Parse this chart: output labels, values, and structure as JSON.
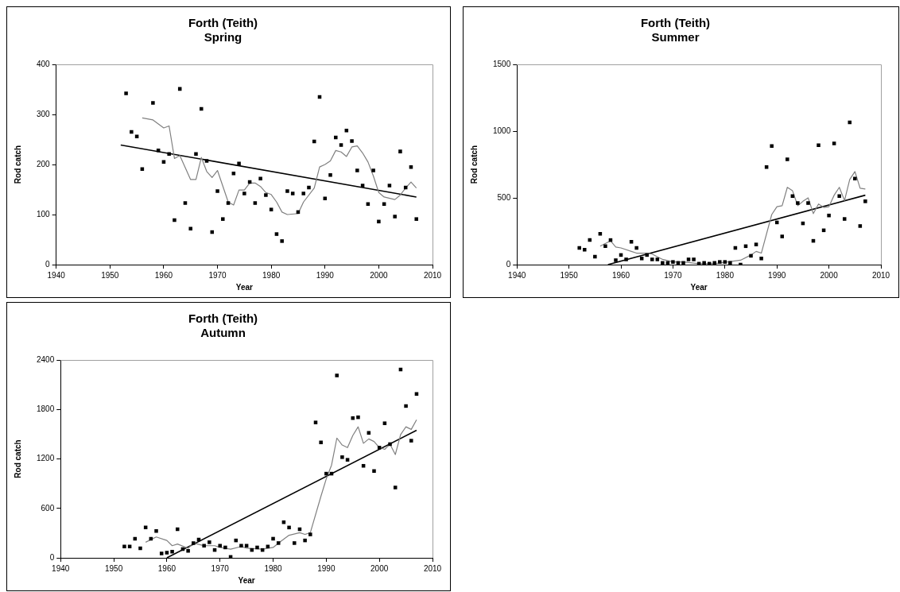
{
  "chart_data": [
    {
      "type": "scatter",
      "title": "Forth (Teith)",
      "subtitle": "Spring",
      "xlabel": "Year",
      "ylabel": "Rod catch",
      "xlim": [
        1940,
        2010
      ],
      "xticks": [
        1940,
        1950,
        1960,
        1970,
        1980,
        1990,
        2000,
        2010
      ],
      "ylim": [
        0,
        400
      ],
      "yticks": [
        0,
        100,
        200,
        300,
        400
      ],
      "grid": false,
      "legend": false,
      "series": [
        {
          "type": "scatter",
          "marker": "square",
          "color": "#000000",
          "x": [
            1953,
            1954,
            1955,
            1956,
            1958,
            1959,
            1960,
            1961,
            1962,
            1963,
            1964,
            1965,
            1966,
            1967,
            1968,
            1969,
            1970,
            1971,
            1972,
            1973,
            1974,
            1975,
            1976,
            1977,
            1978,
            1979,
            1980,
            1981,
            1982,
            1983,
            1984,
            1985,
            1986,
            1987,
            1988,
            1989,
            1990,
            1991,
            1992,
            1993,
            1994,
            1995,
            1996,
            1997,
            1998,
            1999,
            2000,
            2001,
            2002,
            2003,
            2004,
            2005,
            2006,
            2007
          ],
          "values": [
            342,
            265,
            256,
            191,
            323,
            228,
            205,
            221,
            89,
            351,
            123,
            72,
            221,
            311,
            207,
            65,
            147,
            91,
            123,
            182,
            202,
            142,
            165,
            123,
            172,
            139,
            110,
            61,
            47,
            147,
            142,
            105,
            142,
            154,
            246,
            335,
            132,
            179,
            254,
            239,
            268,
            247,
            188,
            158,
            121,
            188,
            86,
            121,
            158,
            96,
            226,
            154,
            195,
            91
          ]
        },
        {
          "type": "line",
          "marker": "none",
          "color": "#808080",
          "x": [
            1956,
            1958,
            1960,
            1961,
            1962,
            1963,
            1965,
            1966,
            1967,
            1968,
            1969,
            1970,
            1972,
            1973,
            1974,
            1975,
            1976,
            1977,
            1978,
            1979,
            1980,
            1981,
            1982,
            1983,
            1985,
            1986,
            1988,
            1989,
            1990,
            1991,
            1992,
            1993,
            1994,
            1995,
            1996,
            1997,
            1998,
            1999,
            2000,
            2001,
            2003,
            2004,
            2005,
            2006,
            2007
          ],
          "values": [
            293,
            289,
            273,
            277,
            212,
            218,
            170,
            170,
            214,
            186,
            174,
            188,
            125,
            119,
            149,
            149,
            163,
            163,
            156,
            144,
            140,
            125,
            105,
            100,
            102,
            125,
            153,
            195,
            200,
            207,
            228,
            225,
            216,
            235,
            237,
            223,
            205,
            177,
            144,
            135,
            130,
            139,
            153,
            165,
            153
          ]
        },
        {
          "type": "line",
          "marker": "none",
          "color": "#000000",
          "x": [
            1952,
            2007
          ],
          "values": [
            239,
            135
          ]
        }
      ]
    },
    {
      "type": "scatter",
      "title": "Forth (Teith)",
      "subtitle": "Summer",
      "xlabel": "Year",
      "ylabel": "Rod catch",
      "xlim": [
        1940,
        2010
      ],
      "xticks": [
        1940,
        1950,
        1960,
        1970,
        1980,
        1990,
        2000,
        2010
      ],
      "ylim": [
        0,
        1500
      ],
      "yticks": [
        0,
        500,
        1000,
        1500
      ],
      "grid": false,
      "legend": false,
      "series": [
        {
          "type": "scatter",
          "marker": "square",
          "color": "#000000",
          "x": [
            1952,
            1953,
            1954,
            1955,
            1956,
            1957,
            1958,
            1959,
            1960,
            1961,
            1962,
            1963,
            1964,
            1965,
            1966,
            1967,
            1968,
            1969,
            1970,
            1971,
            1972,
            1973,
            1974,
            1975,
            1976,
            1977,
            1978,
            1979,
            1980,
            1981,
            1982,
            1983,
            1984,
            1985,
            1986,
            1987,
            1988,
            1989,
            1990,
            1991,
            1992,
            1993,
            1994,
            1995,
            1996,
            1997,
            1998,
            1999,
            2000,
            2001,
            2002,
            2003,
            2004,
            2005,
            2006,
            2007
          ],
          "values": [
            125,
            112,
            184,
            59,
            230,
            138,
            184,
            33,
            72,
            39,
            171,
            125,
            46,
            72,
            39,
            39,
            13,
            13,
            20,
            13,
            13,
            39,
            39,
            7,
            13,
            7,
            13,
            20,
            20,
            13,
            125,
            0,
            138,
            66,
            151,
            46,
            730,
            888,
            316,
            211,
            789,
            513,
            461,
            309,
            461,
            178,
            895,
            257,
            368,
            908,
            513,
            342,
            1066,
            645,
            289,
            474
          ]
        },
        {
          "type": "line",
          "marker": "none",
          "color": "#808080",
          "x": [
            1956,
            1958,
            1959,
            1960,
            1962,
            1963,
            1965,
            1966,
            1968,
            1970,
            1972,
            1975,
            1978,
            1983,
            1985,
            1986,
            1987,
            1989,
            1990,
            1991,
            1992,
            1993,
            1994,
            1995,
            1996,
            1997,
            1998,
            1999,
            2000,
            2001,
            2002,
            2003,
            2004,
            2005,
            2006,
            2007
          ],
          "values": [
            138,
            178,
            132,
            125,
            99,
            86,
            86,
            79,
            39,
            20,
            20,
            7,
            7,
            33,
            72,
            99,
            86,
            375,
            434,
            441,
            579,
            553,
            441,
            474,
            500,
            382,
            454,
            428,
            434,
            520,
            579,
            480,
            638,
            697,
            572,
            566
          ]
        },
        {
          "type": "line",
          "marker": "none",
          "color": "#000000",
          "x": [
            1957.5,
            2007
          ],
          "values": [
            0,
            520
          ]
        }
      ]
    },
    {
      "type": "scatter",
      "title": "Forth (Teith)",
      "subtitle": "Autumn",
      "xlabel": "Year",
      "ylabel": "Rod catch",
      "xlim": [
        1940,
        2010
      ],
      "xticks": [
        1940,
        1950,
        1960,
        1970,
        1980,
        1990,
        2000,
        2010
      ],
      "ylim": [
        0,
        2400
      ],
      "yticks": [
        0,
        600,
        1200,
        1800,
        2400
      ],
      "grid": false,
      "legend": false,
      "series": [
        {
          "type": "scatter",
          "marker": "square",
          "color": "#000000",
          "x": [
            1952,
            1953,
            1954,
            1955,
            1956,
            1957,
            1958,
            1959,
            1960,
            1961,
            1962,
            1963,
            1964,
            1965,
            1966,
            1967,
            1968,
            1969,
            1970,
            1971,
            1972,
            1973,
            1974,
            1975,
            1976,
            1977,
            1978,
            1979,
            1980,
            1981,
            1982,
            1983,
            1984,
            1985,
            1986,
            1987,
            1988,
            1989,
            1990,
            1991,
            1992,
            1993,
            1994,
            1995,
            1996,
            1997,
            1998,
            1999,
            2000,
            2001,
            2002,
            2003,
            2004,
            2005,
            2006,
            2007
          ],
          "values": [
            137,
            137,
            232,
            116,
            368,
            232,
            326,
            53,
            63,
            74,
            347,
            105,
            84,
            179,
            221,
            147,
            189,
            95,
            147,
            126,
            11,
            211,
            147,
            147,
            95,
            126,
            95,
            137,
            232,
            179,
            432,
            368,
            179,
            347,
            211,
            284,
            1642,
            1400,
            1021,
            1021,
            2211,
            1221,
            1189,
            1695,
            1705,
            1116,
            1516,
            1053,
            1337,
            1632,
            1379,
            853,
            2284,
            1842,
            1421,
            1989
          ]
        },
        {
          "type": "line",
          "marker": "none",
          "color": "#808080",
          "x": [
            1956,
            1958,
            1960,
            1961,
            1962,
            1964,
            1965,
            1967,
            1969,
            1970,
            1972,
            1974,
            1975,
            1978,
            1980,
            1981,
            1983,
            1985,
            1986,
            1987,
            1989,
            1990,
            1991,
            1992,
            1993,
            1994,
            1995,
            1996,
            1997,
            1998,
            1999,
            2000,
            2001,
            2002,
            2003,
            2004,
            2005,
            2006,
            2007
          ],
          "values": [
            189,
            253,
            211,
            147,
            168,
            116,
            179,
            147,
            147,
            126,
            105,
            137,
            116,
            105,
            126,
            179,
            274,
            305,
            284,
            305,
            747,
            958,
            1126,
            1453,
            1368,
            1337,
            1484,
            1589,
            1389,
            1442,
            1411,
            1337,
            1316,
            1379,
            1253,
            1495,
            1589,
            1558,
            1674
          ]
        },
        {
          "type": "line",
          "marker": "none",
          "color": "#000000",
          "x": [
            1960,
            2007
          ],
          "values": [
            0,
            1547
          ]
        }
      ]
    }
  ]
}
